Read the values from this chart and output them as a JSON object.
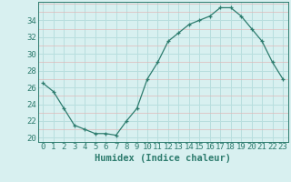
{
  "x": [
    0,
    1,
    2,
    3,
    4,
    5,
    6,
    7,
    8,
    9,
    10,
    11,
    12,
    13,
    14,
    15,
    16,
    17,
    18,
    19,
    20,
    21,
    22,
    23
  ],
  "y": [
    26.5,
    25.5,
    23.5,
    21.5,
    21.0,
    20.5,
    20.5,
    20.3,
    22.0,
    23.5,
    27.0,
    29.0,
    31.5,
    32.5,
    33.5,
    34.0,
    34.5,
    35.5,
    35.5,
    34.5,
    33.0,
    31.5,
    29.0,
    27.0
  ],
  "xlabel": "Humidex (Indice chaleur)",
  "xlim": [
    -0.5,
    23.5
  ],
  "ylim": [
    19.5,
    36.2
  ],
  "yticks": [
    20,
    22,
    24,
    26,
    28,
    30,
    32,
    34
  ],
  "xticks": [
    0,
    1,
    2,
    3,
    4,
    5,
    6,
    7,
    8,
    9,
    10,
    11,
    12,
    13,
    14,
    15,
    16,
    17,
    18,
    19,
    20,
    21,
    22,
    23
  ],
  "line_color": "#2d7c6e",
  "marker": "+",
  "bg_color": "#d8f0f0",
  "grid_major_color": "#b8dede",
  "grid_minor_color": "#e0b8b8",
  "tick_label_fontsize": 6.5,
  "xlabel_fontsize": 7.5
}
